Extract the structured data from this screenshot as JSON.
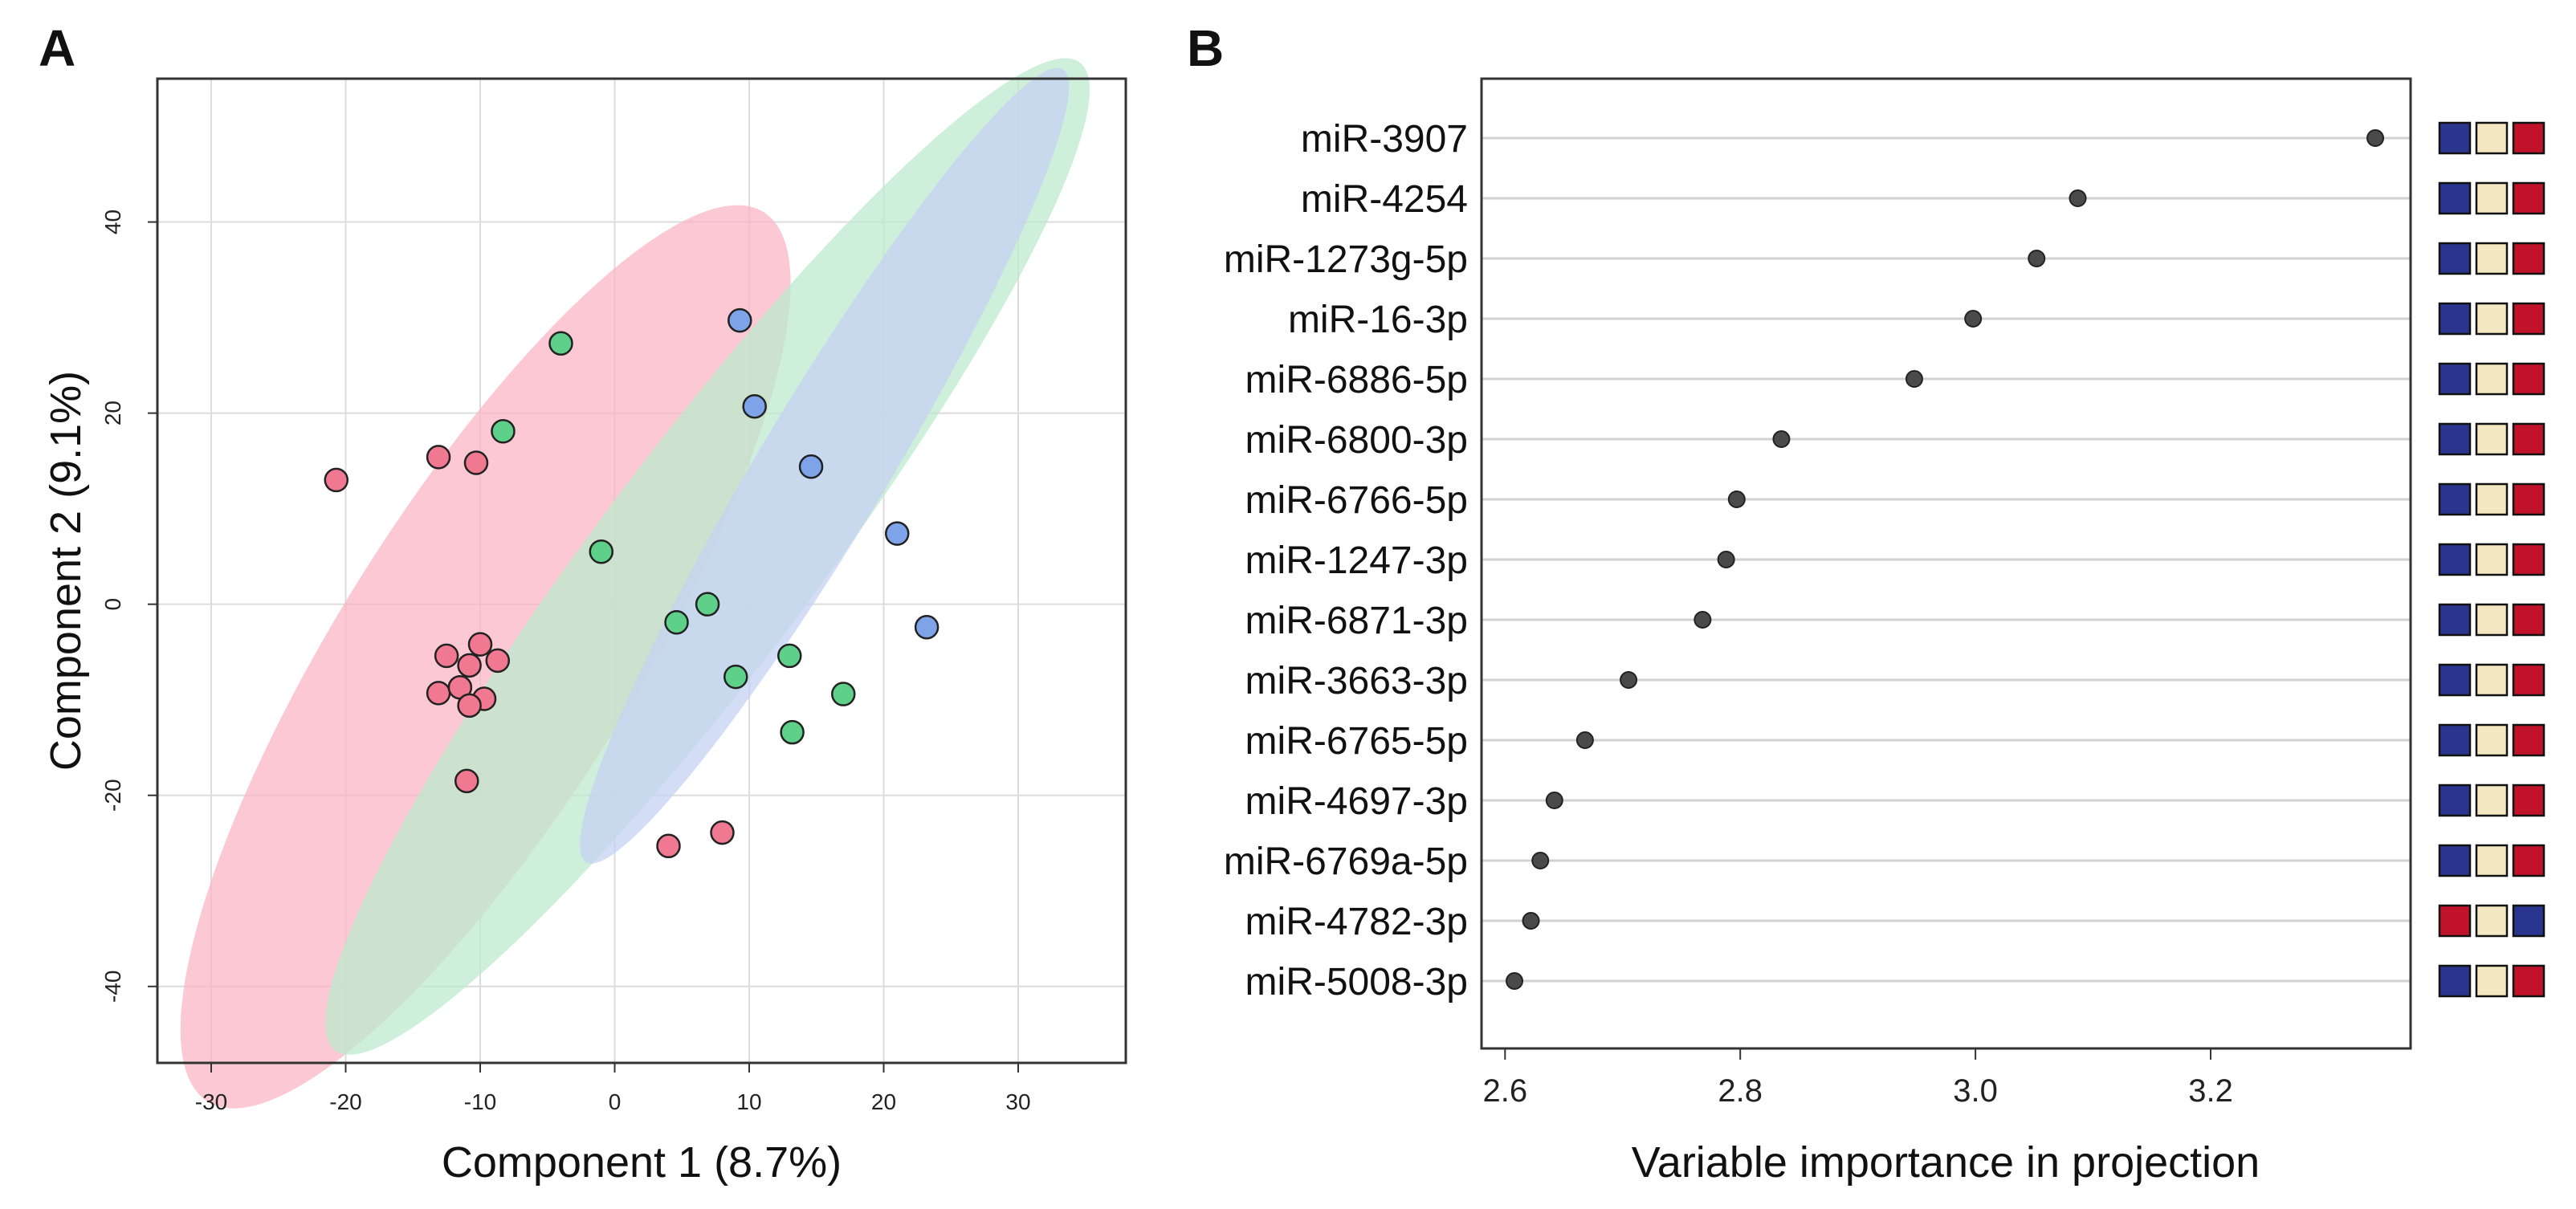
{
  "chart_data": [
    {
      "panel": "A",
      "type": "scatter",
      "xlabel": "Component 1 (8.7%)",
      "ylabel": "Component 2 (9.1%)",
      "xlim": [
        -34,
        38
      ],
      "ylim": [
        -48,
        55
      ],
      "xticks": [
        -30,
        -20,
        -10,
        0,
        10,
        20,
        30
      ],
      "yticks": [
        -40,
        -20,
        0,
        20,
        40
      ],
      "grid": true,
      "series": [
        {
          "name": "red",
          "color": "#f07890",
          "ellipse_color": "#f9b5c5",
          "points": [
            [
              -20.7,
              13
            ],
            [
              -13.1,
              15.4
            ],
            [
              -10.3,
              14.8
            ],
            [
              -12.5,
              -5.4
            ],
            [
              -13.1,
              -9.3
            ],
            [
              -11.5,
              -8.7
            ],
            [
              -10.8,
              -6.4
            ],
            [
              -10,
              -4.2
            ],
            [
              -8.7,
              -5.9
            ],
            [
              -9.7,
              -9.9
            ],
            [
              -10.8,
              -10.6
            ],
            [
              -11,
              -18.5
            ],
            [
              4,
              -25.3
            ],
            [
              8,
              -23.9
            ]
          ],
          "ellipse": {
            "cx": -9.6,
            "cy": -5.5,
            "rx": 39,
            "ry": 15.5,
            "angle": -58
          }
        },
        {
          "name": "green",
          "color": "#5fd08a",
          "ellipse_color": "#bdeacd",
          "points": [
            [
              -4,
              27.3
            ],
            [
              -8.3,
              18.1
            ],
            [
              -1,
              5.5
            ],
            [
              4.6,
              -1.9
            ],
            [
              6.9,
              0
            ],
            [
              9,
              -7.6
            ],
            [
              13,
              -5.4
            ],
            [
              17,
              -9.4
            ],
            [
              13.2,
              -13.4
            ]
          ],
          "ellipse": {
            "cx": 6.9,
            "cy": 5,
            "rx": 46,
            "ry": 11.3,
            "angle": -53
          }
        },
        {
          "name": "blue",
          "color": "#7fa3e8",
          "ellipse_color": "#c6d1f3",
          "points": [
            [
              9.3,
              29.7
            ],
            [
              10.4,
              20.7
            ],
            [
              14.6,
              14.4
            ],
            [
              21,
              7.4
            ],
            [
              23.2,
              -2.4
            ]
          ],
          "ellipse": {
            "cx": 15.6,
            "cy": 14.5,
            "rx": 34.4,
            "ry": 6.7,
            "angle": -59
          }
        }
      ]
    },
    {
      "panel": "B",
      "type": "scatter",
      "xlabel": "Variable importance in projection",
      "xlim": [
        2.58,
        3.37
      ],
      "xticks": [
        2.6,
        2.8,
        3.0,
        3.2
      ],
      "xtick_labels": [
        "2.6",
        "2.8",
        "3.0",
        "3.2"
      ],
      "grid": "horizontal",
      "categories": [
        "miR-3907",
        "miR-4254",
        "miR-1273g-5p",
        "miR-16-3p",
        "miR-6886-5p",
        "miR-6800-3p",
        "miR-6766-5p",
        "miR-1247-3p",
        "miR-6871-3p",
        "miR-3663-3p",
        "miR-6765-5p",
        "miR-4697-3p",
        "miR-6769a-5p",
        "miR-4782-3p",
        "miR-5008-3p"
      ],
      "values": [
        3.34,
        3.087,
        3.052,
        2.998,
        2.948,
        2.835,
        2.797,
        2.788,
        2.768,
        2.705,
        2.668,
        2.642,
        2.63,
        2.622,
        2.608
      ],
      "heat_colors": {
        "low": "#2a3590",
        "mid": "#f4e8c2",
        "high": "#c0132a"
      },
      "heat": [
        [
          "low",
          "mid",
          "high"
        ],
        [
          "low",
          "mid",
          "high"
        ],
        [
          "low",
          "mid",
          "high"
        ],
        [
          "low",
          "mid",
          "high"
        ],
        [
          "low",
          "mid",
          "high"
        ],
        [
          "low",
          "mid",
          "high"
        ],
        [
          "low",
          "mid",
          "high"
        ],
        [
          "low",
          "mid",
          "high"
        ],
        [
          "low",
          "mid",
          "high"
        ],
        [
          "low",
          "mid",
          "high"
        ],
        [
          "low",
          "mid",
          "high"
        ],
        [
          "low",
          "mid",
          "high"
        ],
        [
          "low",
          "mid",
          "high"
        ],
        [
          "high",
          "mid",
          "low"
        ],
        [
          "low",
          "mid",
          "high"
        ]
      ]
    }
  ]
}
